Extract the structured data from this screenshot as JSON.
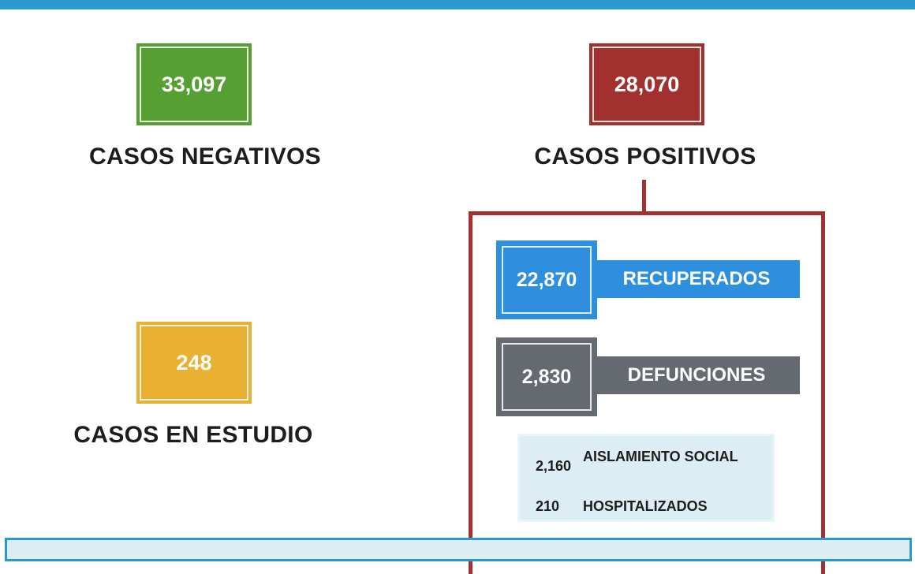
{
  "colors": {
    "top_bar": "#2b98cf",
    "negativos": "#56a033",
    "positivos": "#a1302f",
    "en_estudio": "#e9b031",
    "recuperados": "#2e8fde",
    "defunciones": "#656a70",
    "info_panel": "#dcedf3"
  },
  "negativos": {
    "value": "33,097",
    "label": "CASOS NEGATIVOS"
  },
  "positivos": {
    "value": "28,070",
    "label": "CASOS POSITIVOS"
  },
  "en_estudio": {
    "value": "248",
    "label": "CASOS EN ESTUDIO"
  },
  "recuperados": {
    "value": "22,870",
    "label": "RECUPERADOS"
  },
  "defunciones": {
    "value": "2,830",
    "label": "DEFUNCIONES"
  },
  "activos": {
    "aislamiento_value": "2,160",
    "aislamiento_label": "AISLAMIENTO SOCIAL",
    "hospitalizados_value": "210",
    "hospitalizados_label": "HOSPITALIZADOS"
  }
}
